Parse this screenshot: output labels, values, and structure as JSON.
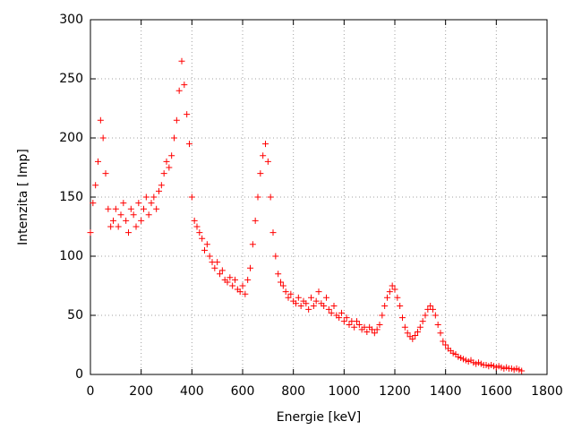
{
  "chart_data": {
    "type": "scatter",
    "xlabel": "Energie [keV]",
    "ylabel": "Intenzita [ Imp]",
    "color": "#ff0000",
    "grid": true,
    "xlim": [
      0,
      1800
    ],
    "xticks": [
      0,
      200,
      400,
      600,
      800,
      1000,
      1200,
      1400,
      1600,
      1800
    ],
    "ylim": [
      0,
      300
    ],
    "yticks": [
      0,
      50,
      100,
      150,
      200,
      250,
      300
    ],
    "x": [
      0,
      10,
      20,
      30,
      40,
      50,
      60,
      70,
      80,
      90,
      100,
      110,
      120,
      130,
      140,
      150,
      160,
      170,
      180,
      190,
      200,
      210,
      220,
      230,
      240,
      250,
      260,
      270,
      280,
      290,
      300,
      310,
      320,
      330,
      340,
      350,
      360,
      370,
      380,
      390,
      400,
      410,
      420,
      430,
      440,
      450,
      460,
      470,
      480,
      490,
      500,
      510,
      520,
      530,
      540,
      550,
      560,
      570,
      580,
      590,
      600,
      610,
      620,
      630,
      640,
      650,
      660,
      670,
      680,
      690,
      700,
      710,
      720,
      730,
      740,
      750,
      760,
      770,
      780,
      790,
      800,
      810,
      820,
      830,
      840,
      850,
      860,
      870,
      880,
      890,
      900,
      910,
      920,
      930,
      940,
      950,
      960,
      970,
      980,
      990,
      1000,
      1010,
      1020,
      1030,
      1040,
      1050,
      1060,
      1070,
      1080,
      1090,
      1100,
      1110,
      1120,
      1130,
      1140,
      1150,
      1160,
      1170,
      1180,
      1190,
      1200,
      1210,
      1220,
      1230,
      1240,
      1250,
      1260,
      1270,
      1280,
      1290,
      1300,
      1310,
      1320,
      1330,
      1340,
      1350,
      1360,
      1370,
      1380,
      1390,
      1400,
      1410,
      1420,
      1430,
      1440,
      1450,
      1460,
      1470,
      1480,
      1490,
      1500,
      1510,
      1520,
      1530,
      1540,
      1550,
      1560,
      1570,
      1580,
      1590,
      1600,
      1610,
      1620,
      1630,
      1640,
      1650,
      1660,
      1670,
      1680,
      1690,
      1700
    ],
    "values": [
      120,
      145,
      160,
      180,
      215,
      200,
      170,
      140,
      125,
      130,
      140,
      125,
      135,
      145,
      130,
      120,
      140,
      135,
      125,
      145,
      130,
      140,
      150,
      135,
      145,
      150,
      140,
      155,
      160,
      170,
      180,
      175,
      185,
      200,
      215,
      240,
      265,
      245,
      220,
      195,
      150,
      130,
      125,
      120,
      115,
      105,
      110,
      100,
      95,
      90,
      95,
      85,
      88,
      80,
      78,
      82,
      75,
      80,
      72,
      70,
      75,
      68,
      80,
      90,
      110,
      130,
      150,
      170,
      185,
      195,
      180,
      150,
      120,
      100,
      85,
      78,
      75,
      70,
      65,
      68,
      62,
      60,
      65,
      58,
      62,
      60,
      55,
      65,
      58,
      62,
      70,
      60,
      58,
      65,
      55,
      52,
      58,
      50,
      48,
      52,
      45,
      48,
      42,
      45,
      40,
      45,
      42,
      38,
      40,
      36,
      40,
      38,
      35,
      38,
      42,
      50,
      58,
      65,
      70,
      75,
      72,
      65,
      58,
      48,
      40,
      35,
      32,
      30,
      33,
      36,
      40,
      45,
      50,
      55,
      58,
      55,
      50,
      42,
      35,
      28,
      25,
      22,
      20,
      18,
      17,
      15,
      14,
      13,
      12,
      11,
      12,
      10,
      9,
      10,
      9,
      8,
      8,
      7,
      8,
      7,
      6,
      7,
      6,
      5,
      6,
      5,
      5,
      4,
      5,
      4,
      3
    ]
  }
}
